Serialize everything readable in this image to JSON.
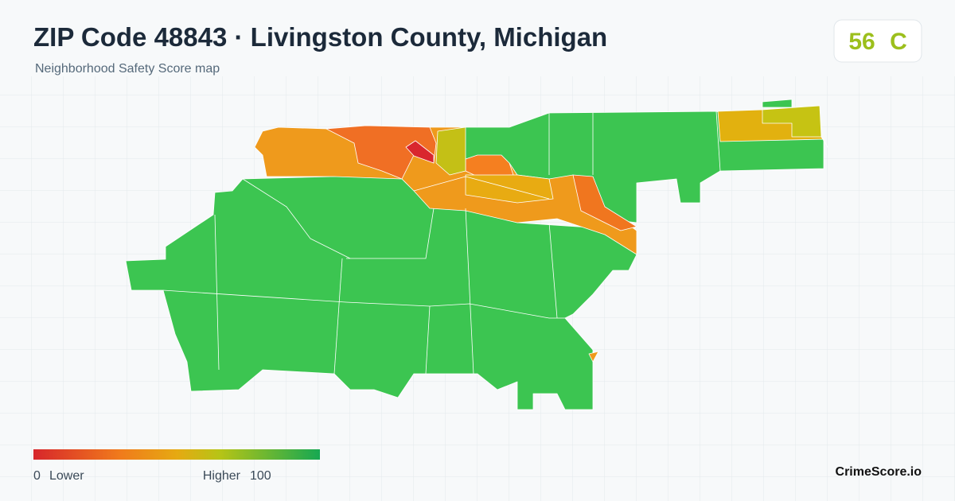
{
  "header": {
    "title": "ZIP Code 48843 · Livingston County, Michigan",
    "subtitle": "Neighborhood Safety Score map"
  },
  "badge": {
    "score": 56,
    "grade": "C"
  },
  "legend": {
    "min": 0,
    "min_label": "Lower",
    "max_label": "Higher",
    "max": 100
  },
  "brand": "CrimeScore.io"
}
